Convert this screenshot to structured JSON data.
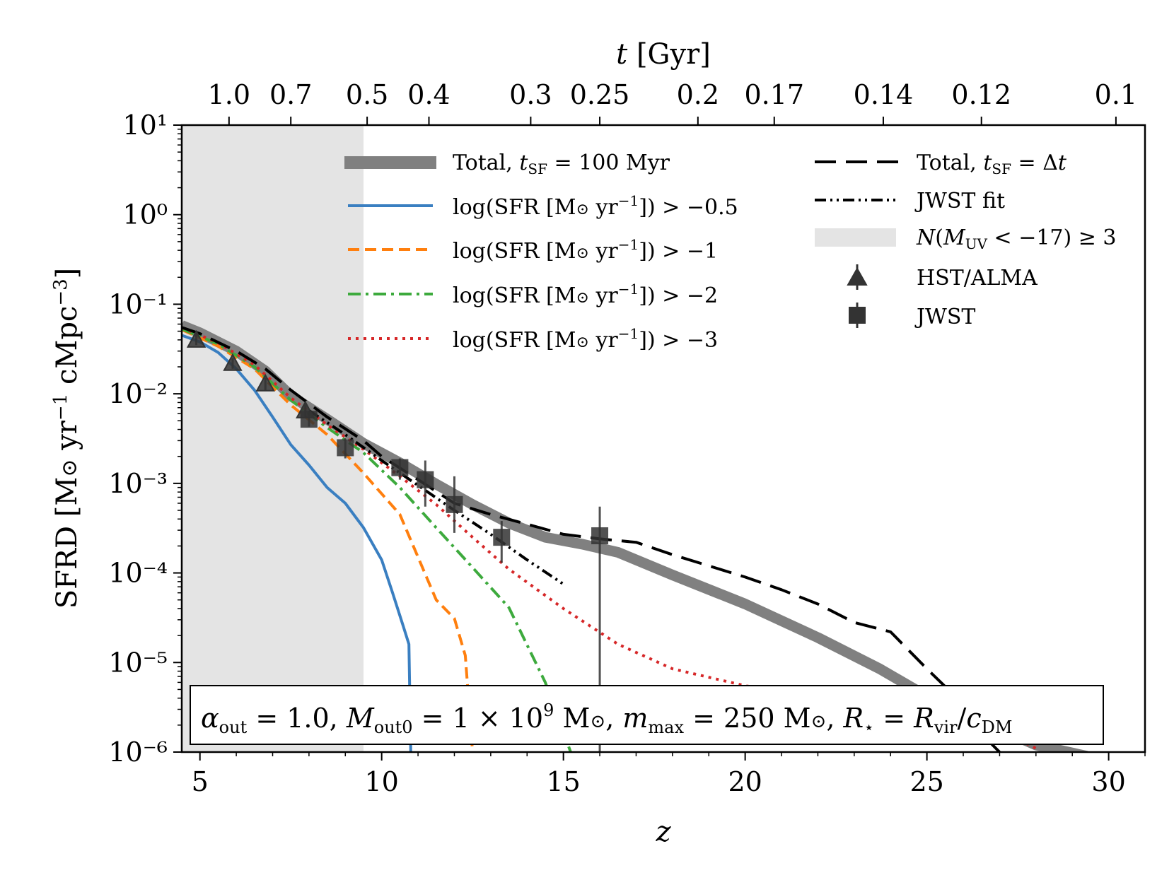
{
  "chart_data": {
    "type": "line",
    "xlabel": "z",
    "ylabel": "SFRD [M⊙ yr⁻¹ cMpc⁻³]",
    "top_xlabel": "t [Gyr]",
    "xlim": [
      4.5,
      31.0
    ],
    "ylim": [
      1e-06,
      10
    ],
    "yscale": "log",
    "grid": false,
    "legend_position": "top",
    "x_ticks": [
      5,
      10,
      15,
      20,
      25,
      30
    ],
    "y_ticks": [
      1e-06,
      1e-05,
      0.0001,
      0.001,
      0.01,
      0.1,
      1,
      10
    ],
    "y_tick_labels": [
      "10⁻⁶",
      "10⁻⁵",
      "10⁻⁴",
      "10⁻³",
      "10⁻²",
      "10⁻¹",
      "10⁰",
      "10¹"
    ],
    "top_ticks": [
      {
        "label": "1.0",
        "z": 5.8
      },
      {
        "label": "0.7",
        "z": 7.5
      },
      {
        "label": "0.5",
        "z": 9.6
      },
      {
        "label": "0.4",
        "z": 11.3
      },
      {
        "label": "0.3",
        "z": 14.1
      },
      {
        "label": "0.25",
        "z": 16.0
      },
      {
        "label": "0.2",
        "z": 18.7
      },
      {
        "label": "0.17",
        "z": 20.8
      },
      {
        "label": "0.14",
        "z": 23.8
      },
      {
        "label": "0.12",
        "z": 26.5
      },
      {
        "label": "0.1",
        "z": 30.2
      }
    ],
    "shaded_region": {
      "label": "N(M_UV < −17) ≥ 3",
      "x_range": [
        4.5,
        9.5
      ],
      "color": "#e4e4e4"
    },
    "annotation": "α_out = 1.0, M_out0 = 1 × 10⁹ M⊙, m_max = 250 M⊙, R⋆ = R_vir/c_DM",
    "series": [
      {
        "name": "Total, t_SF = 100 Myr",
        "color": "#808080",
        "style": "thick",
        "x": [
          4.5,
          5,
          6,
          6.8,
          7.5,
          8.5,
          9.5,
          10.5,
          11.5,
          12.5,
          13.5,
          14.5,
          15.5,
          16.5,
          18,
          20,
          22,
          23.7,
          25,
          26.5,
          28,
          29.4
        ],
        "y": [
          0.058,
          0.048,
          0.03,
          0.018,
          0.0095,
          0.0052,
          0.0028,
          0.0017,
          0.00098,
          0.00058,
          0.00036,
          0.00025,
          0.00021,
          0.00017,
          9.5e-05,
          4.5e-05,
          1.9e-05,
          8.5e-06,
          4.2e-06,
          2.2e-06,
          1.2e-06,
          9e-07
        ]
      },
      {
        "name": "log(SFR [M⊙ yr⁻¹]) > −0.5",
        "color": "#3a7fc1",
        "style": "solid",
        "x": [
          4.5,
          5,
          5.5,
          6,
          6.5,
          7,
          7.5,
          8,
          8.5,
          9,
          9.5,
          10,
          10.3,
          10.6,
          10.75,
          10.8
        ],
        "y": [
          0.045,
          0.038,
          0.029,
          0.019,
          0.011,
          0.0055,
          0.0027,
          0.0016,
          0.0009,
          0.0006,
          0.00032,
          0.00014,
          6e-05,
          2.5e-05,
          1.6e-05,
          1e-06
        ]
      },
      {
        "name": "log(SFR [M⊙ yr⁻¹]) > −1",
        "color": "#ff7f0e",
        "style": "dashed",
        "x": [
          4.5,
          5.5,
          6.5,
          7.5,
          8.5,
          9.5,
          10.5,
          11,
          11.5,
          12,
          12.3,
          12.5
        ],
        "y": [
          0.052,
          0.034,
          0.019,
          0.0075,
          0.0035,
          0.0013,
          0.00045,
          0.00015,
          5e-05,
          3.1e-05,
          1.2e-05,
          1e-06
        ]
      },
      {
        "name": "log(SFR [M⊙ yr⁻¹]) > −2",
        "color": "#3daa3d",
        "style": "dashdot",
        "x": [
          4.5,
          5.5,
          6.5,
          7.5,
          8.5,
          9.5,
          10.5,
          11.5,
          12.5,
          13.5,
          14.5,
          15.2
        ],
        "y": [
          0.053,
          0.036,
          0.02,
          0.0085,
          0.0042,
          0.0022,
          0.0009,
          0.00032,
          0.000115,
          4.1e-05,
          6e-06,
          1e-06
        ]
      },
      {
        "name": "log(SFR [M⊙ yr⁻¹]) > −3",
        "color": "#d62728",
        "style": "dotted",
        "x": [
          4.5,
          5.5,
          6.5,
          7.5,
          8.5,
          9.5,
          10.5,
          11.5,
          12.5,
          13.5,
          15,
          16.5,
          18,
          20,
          22,
          24,
          26,
          27,
          28
        ],
        "y": [
          0.055,
          0.037,
          0.021,
          0.009,
          0.0045,
          0.0024,
          0.0012,
          0.00058,
          0.00025,
          0.00011,
          4e-05,
          1.6e-05,
          8.5e-06,
          5.5e-06,
          4.2e-06,
          3.3e-06,
          2.5e-06,
          1.8e-06,
          1.1e-06
        ]
      },
      {
        "name": "Total, t_SF = Δt",
        "color": "#000000",
        "style": "longdash",
        "x": [
          4.5,
          5,
          6,
          6.8,
          7.5,
          8.5,
          9.5,
          10,
          11,
          12,
          13,
          14,
          15,
          16,
          17,
          18,
          19,
          20,
          21,
          22,
          23,
          24,
          25,
          25.7,
          26,
          26.5,
          27
        ],
        "y": [
          0.055,
          0.047,
          0.03,
          0.019,
          0.011,
          0.0055,
          0.003,
          0.002,
          0.0011,
          0.0006,
          0.00045,
          0.00035,
          0.00027,
          0.00024,
          0.00022,
          0.00016,
          0.00012,
          9e-05,
          6.5e-05,
          4.5e-05,
          2.8e-05,
          2.2e-05,
          8.5e-06,
          4.5e-06,
          2.8e-06,
          1.6e-06,
          1e-06
        ]
      },
      {
        "name": "JWST fit",
        "color": "#000000",
        "style": "dashdotdot",
        "x": [
          8,
          9,
          10,
          11,
          12,
          13,
          14,
          15
        ],
        "y": [
          0.0065,
          0.0035,
          0.0018,
          0.00095,
          0.0005,
          0.00027,
          0.00014,
          7.5e-05
        ]
      }
    ],
    "points": [
      {
        "name": "HST/ALMA",
        "marker": "triangle",
        "color": "#333333",
        "x": [
          4.9,
          5.9,
          6.8,
          7.9
        ],
        "y": [
          0.04,
          0.022,
          0.013,
          0.0065
        ],
        "err_lo": [
          0.035,
          0.019,
          0.011,
          0.0055
        ],
        "err_hi": [
          0.046,
          0.025,
          0.015,
          0.0076
        ]
      },
      {
        "name": "JWST",
        "marker": "square",
        "color": "#333333",
        "x": [
          8.0,
          9.0,
          10.5,
          11.2,
          12.0,
          13.3,
          16.0
        ],
        "y": [
          0.0052,
          0.0025,
          0.0015,
          0.0011,
          0.00058,
          0.00025,
          0.00026
        ],
        "err_lo": [
          0.0043,
          0.0019,
          0.0011,
          0.00055,
          0.00028,
          0.00013,
          1e-07
        ],
        "err_hi": [
          0.0062,
          0.0032,
          0.0019,
          0.0018,
          0.0012,
          0.00038,
          0.00055
        ]
      }
    ]
  }
}
